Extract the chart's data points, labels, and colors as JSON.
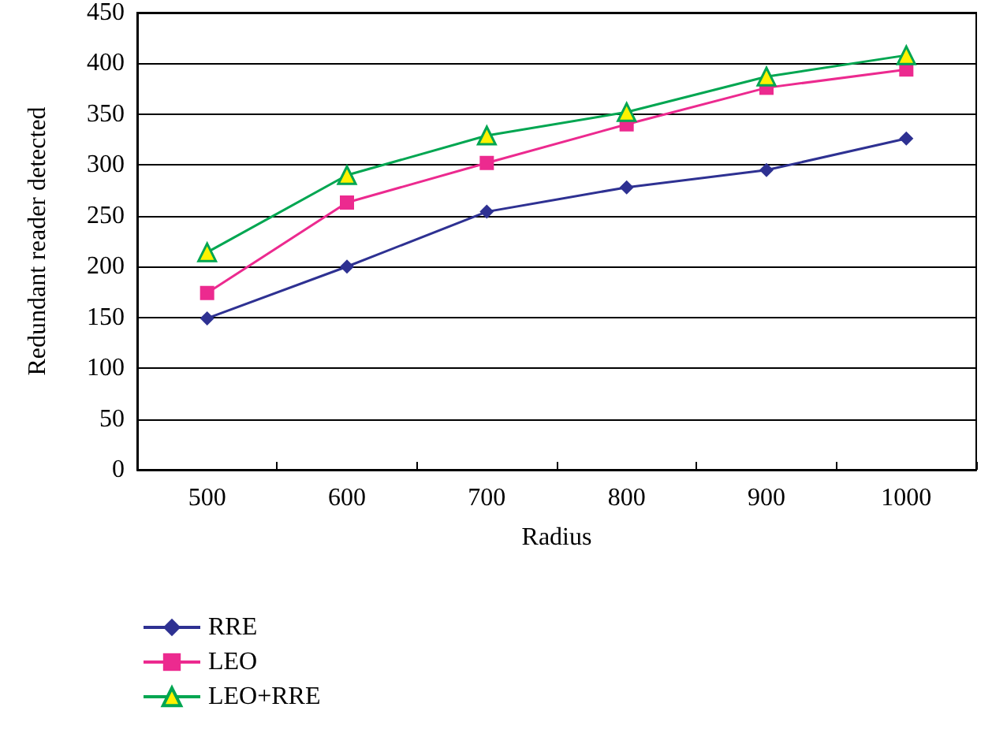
{
  "chart_data": {
    "type": "line",
    "xlabel": "Radius",
    "ylabel": "Redundant reader detected",
    "categories": [
      "500",
      "600",
      "700",
      "800",
      "900",
      "1000"
    ],
    "series": [
      {
        "name": "RRE",
        "color": "#2e3192",
        "marker": "diamond",
        "values": [
          149,
          200,
          254,
          278,
          295,
          326
        ]
      },
      {
        "name": "LEO",
        "color": "#ec2a8f",
        "marker": "square",
        "values": [
          174,
          263,
          302,
          340,
          376,
          394
        ]
      },
      {
        "name": "LEO+RRE",
        "color": "#00a651",
        "marker": "triangle",
        "values": [
          214,
          290,
          329,
          352,
          387,
          408
        ]
      }
    ],
    "ylim": [
      0,
      450
    ],
    "yticks": [
      0,
      50,
      100,
      150,
      200,
      250,
      300,
      350,
      400,
      450
    ],
    "grid": "y",
    "legend": "bottom left",
    "line_style": "solid"
  }
}
